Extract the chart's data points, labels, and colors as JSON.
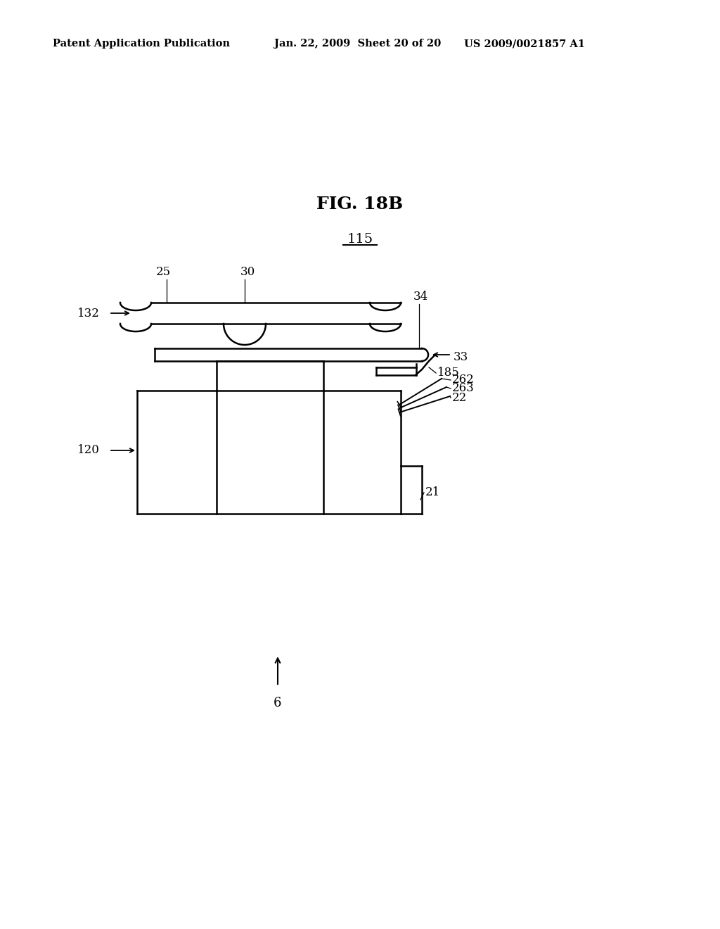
{
  "bg_color": "#ffffff",
  "header_left": "Patent Application Publication",
  "header_mid": "Jan. 22, 2009  Sheet 20 of 20",
  "header_right": "US 2009/0021857 A1",
  "fig_title": "FIG. 18B",
  "fig_label": "115",
  "lw": 1.8
}
